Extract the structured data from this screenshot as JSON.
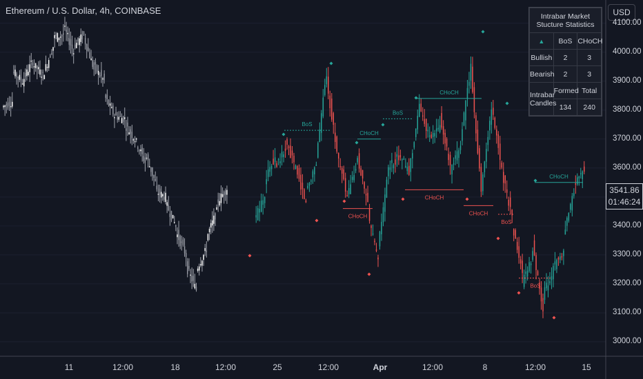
{
  "header": {
    "title": "Ethereum / U.S. Dollar, 4h, COINBASE",
    "currency": "USD"
  },
  "price_tag": {
    "price": "3541.86",
    "countdown": "01:46:24"
  },
  "stats_panel": {
    "title": "Intrabar Market Stucture Statistics",
    "col_bos": "BoS",
    "col_choch": "CHoCH",
    "bullish_label": "Bullish",
    "bullish_bos": "2",
    "bullish_choch": "3",
    "bearish_label": "Bearish",
    "bearish_bos": "2",
    "bearish_choch": "3",
    "intrabar_label": "Intrabar Candles",
    "formed_label": "Formed",
    "total_label": "Total",
    "formed_value": "134",
    "total_value": "240"
  },
  "colors": {
    "background": "#131722",
    "bull": "#26a69a",
    "bear": "#ef5350",
    "history_candles": "#d1d4dc",
    "text": "#d1d4dc"
  },
  "chart_data": {
    "type": "candlestick",
    "title": "Ethereum / U.S. Dollar, 4h, COINBASE",
    "ylim": [
      2950,
      4180
    ],
    "y_ticks": [
      "3000.00",
      "3100.00",
      "3200.00",
      "3300.00",
      "3400.00",
      "3500.00",
      "3600.00",
      "3700.00",
      "3800.00",
      "3900.00",
      "4000.00",
      "4100.00"
    ],
    "x_ticks": [
      {
        "label": "11",
        "bold": false
      },
      {
        "label": "12:00",
        "bold": false
      },
      {
        "label": "18",
        "bold": false
      },
      {
        "label": "12:00",
        "bold": false
      },
      {
        "label": "25",
        "bold": false
      },
      {
        "label": "12:00",
        "bold": false
      },
      {
        "label": "Apr",
        "bold": true
      },
      {
        "label": "12:00",
        "bold": false
      },
      {
        "label": "8",
        "bold": false
      },
      {
        "label": "12:00",
        "bold": false
      },
      {
        "label": "15",
        "bold": false
      }
    ],
    "history_path": [
      [
        3810,
        3830
      ],
      [
        3935,
        3900
      ],
      [
        3900,
        3970
      ],
      [
        3960,
        3920
      ],
      [
        3920,
        4020
      ],
      [
        4050,
        4060
      ],
      [
        4090,
        4000
      ],
      [
        4020,
        4060
      ],
      [
        4050,
        3940
      ],
      [
        3950,
        3900
      ],
      [
        3850,
        3780
      ],
      [
        3780,
        3770
      ],
      [
        3750,
        3700
      ],
      [
        3700,
        3620
      ],
      [
        3650,
        3550
      ],
      [
        3520,
        3500
      ],
      [
        3480,
        3400
      ],
      [
        3380,
        3300
      ],
      [
        3260,
        3180
      ],
      [
        3250,
        3320
      ],
      [
        3360,
        3450
      ],
      [
        3480,
        3530
      ]
    ],
    "intrabar_path": [
      [
        3420,
        3510
      ],
      [
        3560,
        3640
      ],
      [
        3610,
        3660
      ],
      [
        3690,
        3600
      ],
      [
        3600,
        3480
      ],
      [
        3520,
        3620
      ],
      [
        3640,
        3930
      ],
      [
        3900,
        3660
      ],
      [
        3650,
        3500
      ],
      [
        3500,
        3620
      ],
      [
        3640,
        3470
      ],
      [
        3440,
        3280
      ],
      [
        3320,
        3600
      ],
      [
        3600,
        3640
      ],
      [
        3660,
        3580
      ],
      [
        3590,
        3810
      ],
      [
        3820,
        3700
      ],
      [
        3700,
        3740
      ],
      [
        3780,
        3600
      ],
      [
        3580,
        3680
      ],
      [
        3700,
        3950
      ],
      [
        3940,
        3520
      ],
      [
        3540,
        3800
      ],
      [
        3810,
        3600
      ],
      [
        3590,
        3430
      ],
      [
        3400,
        3240
      ],
      [
        3200,
        3300
      ],
      [
        3340,
        3100
      ],
      [
        3160,
        3250
      ],
      [
        3260,
        3300
      ],
      [
        3360,
        3520
      ],
      [
        3540,
        3600
      ]
    ],
    "structure": [
      {
        "label": "BoS",
        "dir": "bull",
        "price": 3730
      },
      {
        "label": "CHoCH",
        "dir": "bull",
        "price": 3700
      },
      {
        "label": "CHoCH",
        "dir": "bear",
        "price": 3460
      },
      {
        "label": "BoS",
        "dir": "bull",
        "price": 3770
      },
      {
        "label": "CHoCH",
        "dir": "bear",
        "price": 3525
      },
      {
        "label": "CHoCH",
        "dir": "bull",
        "price": 3840
      },
      {
        "label": "CHoCH",
        "dir": "bear",
        "price": 3470
      },
      {
        "label": "BoS",
        "dir": "bear",
        "price": 3440
      },
      {
        "label": "BoS",
        "dir": "bear",
        "price": 3220
      },
      {
        "label": "CHoCH",
        "dir": "bull",
        "price": 3550
      }
    ]
  }
}
